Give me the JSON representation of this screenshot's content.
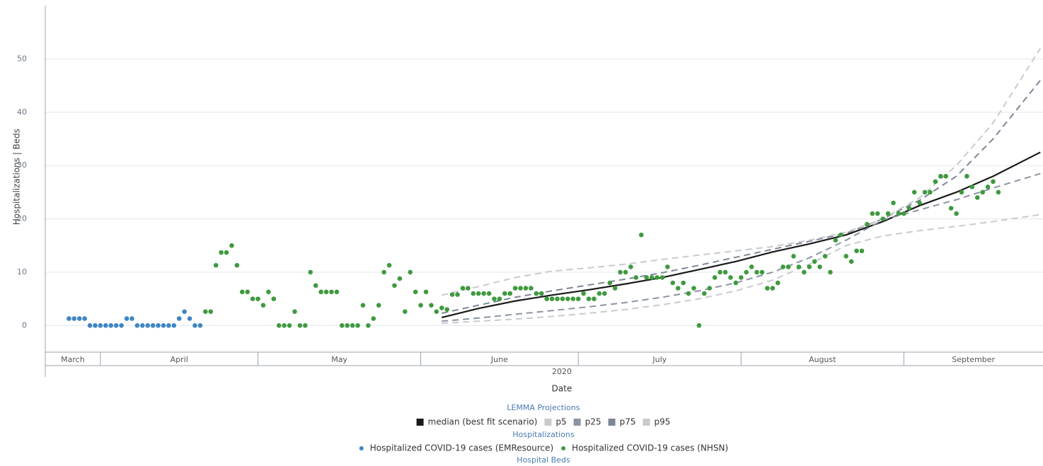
{
  "chart_data": {
    "type": "line",
    "ylabel": "Hospitalizations | Beds",
    "xlabel": "Date",
    "x_group_label": "2020",
    "xlim": [
      81.5,
      271.5
    ],
    "xticks": [
      {
        "value": 61,
        "label": "March"
      },
      {
        "value": 92,
        "label": "April"
      },
      {
        "value": 122,
        "label": "May"
      },
      {
        "value": 153,
        "label": "June"
      },
      {
        "value": 183,
        "label": "July"
      },
      {
        "value": 214,
        "label": "August"
      },
      {
        "value": 245,
        "label": "September"
      }
    ],
    "ylim": [
      -5,
      60
    ],
    "yticks": [
      0,
      10,
      20,
      30,
      40,
      50
    ],
    "grid": true,
    "groups": [
      {
        "title": "LEMMA Projections",
        "series": [
          {
            "name": "median (best fit scenario)",
            "type": "line",
            "dash": false,
            "color": "#1a1a1a",
            "x": [
              157,
              164,
              171,
              178,
              185,
              192,
              199,
              206,
              213,
              220,
              227,
              234,
              241,
              248,
              255,
              262,
              271
            ],
            "values": [
              1.5,
              3.2,
              4.6,
              5.7,
              6.7,
              7.8,
              9,
              10.5,
              12,
              13.8,
              15.3,
              17,
              19.5,
              22.5,
              25,
              28,
              32.5
            ]
          },
          {
            "name": "p5",
            "type": "line",
            "dash": true,
            "color": "#c8cacd",
            "x": [
              157,
              164,
              171,
              178,
              185,
              192,
              199,
              206,
              213,
              220,
              227,
              234,
              241,
              248,
              255,
              262,
              271
            ],
            "values": [
              0.4,
              0.8,
              1.2,
              1.7,
              2.3,
              3,
              3.9,
              5,
              6.5,
              8.5,
              11.5,
              15,
              16.8,
              17.8,
              18.6,
              19.5,
              20.8
            ]
          },
          {
            "name": "p25",
            "type": "line",
            "dash": true,
            "color": "#8a94a2",
            "x": [
              157,
              164,
              171,
              178,
              185,
              192,
              199,
              206,
              213,
              220,
              227,
              234,
              241,
              248,
              255,
              262,
              271
            ],
            "values": [
              0.8,
              1.4,
              2.1,
              2.8,
              3.5,
              4.3,
              5.3,
              6.5,
              8,
              10,
              12.7,
              16,
              19.8,
              21.7,
              23.6,
              25.8,
              28.5
            ]
          },
          {
            "name": "p75",
            "type": "line",
            "dash": true,
            "color": "#7c8796",
            "x": [
              157,
              164,
              171,
              178,
              185,
              192,
              199,
              206,
              213,
              220,
              227,
              234,
              241,
              248,
              255,
              262,
              271
            ],
            "values": [
              2.3,
              3.8,
              5.3,
              6.5,
              7.6,
              8.7,
              9.9,
              11.3,
              12.8,
              14.3,
              15.8,
              17.3,
              20,
              23.5,
              28,
              35,
              46
            ]
          },
          {
            "name": "p95",
            "type": "line",
            "dash": true,
            "color": "#c8cacd",
            "x": [
              157,
              164,
              171,
              178,
              185,
              192,
              199,
              206,
              213,
              220,
              227,
              234,
              241,
              248,
              255,
              262,
              271
            ],
            "values": [
              5.7,
              7.3,
              9,
              10.2,
              10.8,
              11.5,
              12.4,
              13.2,
              14,
              14.8,
              16,
              17.5,
              20,
              24,
              30,
              38,
              52
            ]
          }
        ]
      },
      {
        "title": "Hospitalizations",
        "series": [
          {
            "name": "Hospitalized COVID-19 cases (EMResource)",
            "type": "scatter",
            "color": "#3f86c4",
            "x": [
              86,
              87,
              88,
              89,
              90,
              91,
              92,
              93,
              94,
              95,
              96,
              97,
              98,
              99,
              100,
              101,
              102,
              103,
              104,
              105,
              106,
              107,
              108,
              109,
              110,
              111
            ],
            "values": [
              1.3,
              1.3,
              1.3,
              1.3,
              0,
              0,
              0,
              0,
              0,
              0,
              0,
              1.3,
              1.3,
              0,
              0,
              0,
              0,
              0,
              0,
              0,
              0,
              1.3,
              2.6,
              1.3,
              0,
              0
            ]
          },
          {
            "name": "Hospitalized COVID-19 cases (NHSN)",
            "type": "scatter",
            "color": "#3f9a3f",
            "x": [
              112,
              113,
              114,
              115,
              116,
              117,
              118,
              119,
              120,
              121,
              122,
              123,
              124,
              125,
              126,
              127,
              128,
              129,
              130,
              131,
              132,
              133,
              134,
              135,
              136,
              137,
              138,
              139,
              140,
              141,
              142,
              143,
              144,
              145,
              146,
              147,
              148,
              149,
              150,
              151,
              152,
              153,
              154,
              155,
              156,
              157,
              158,
              159,
              160,
              161,
              162,
              163,
              164,
              165,
              166,
              167,
              168,
              169,
              170,
              171,
              172,
              173,
              174,
              175,
              176,
              177,
              178,
              179,
              180,
              181,
              182,
              183,
              184,
              185,
              186,
              187,
              188,
              189,
              190,
              191,
              192,
              193,
              194,
              195,
              196,
              197,
              198,
              199,
              200,
              201,
              202,
              203,
              204,
              205,
              206,
              207,
              208,
              209,
              210,
              211,
              212,
              213,
              214,
              215,
              216,
              217,
              218,
              219,
              220,
              221,
              222,
              223,
              224,
              225,
              226,
              227,
              228,
              229,
              230,
              231,
              232,
              233,
              234,
              235,
              236,
              237,
              238,
              239,
              240,
              241,
              242,
              243,
              244,
              245,
              246,
              247,
              248,
              249,
              250,
              251,
              252,
              253,
              254,
              255,
              256,
              257,
              258,
              259,
              260,
              261,
              262,
              263
            ],
            "values": [
              2.6,
              2.6,
              11.3,
              13.7,
              13.7,
              15,
              11.3,
              6.3,
              6.3,
              5,
              5,
              3.8,
              6.3,
              5,
              0,
              0,
              0,
              2.6,
              0,
              0,
              10,
              7.5,
              6.3,
              6.3,
              6.3,
              6.3,
              0,
              0,
              0,
              0,
              3.8,
              0,
              1.3,
              3.8,
              10,
              11.3,
              7.5,
              8.8,
              2.6,
              10,
              6.3,
              3.8,
              6.3,
              3.8,
              2.6,
              3.3,
              3,
              5.8,
              5.8,
              7,
              7,
              6,
              6,
              6,
              6,
              5,
              5,
              6,
              6,
              7,
              7,
              7,
              7,
              6,
              6,
              5,
              5,
              5,
              5,
              5,
              5,
              5,
              6,
              5,
              5,
              6,
              6,
              8,
              7,
              10,
              10,
              11,
              9,
              17,
              9,
              9,
              9,
              9,
              11,
              8,
              7,
              8,
              6,
              7,
              0,
              6,
              7,
              9,
              10,
              10,
              9,
              8,
              9,
              10,
              11,
              10,
              10,
              7,
              7,
              8,
              11,
              11,
              13,
              11,
              10,
              11,
              12,
              11,
              13,
              10,
              16,
              17,
              13,
              12,
              14,
              14,
              19,
              21,
              21,
              20,
              21,
              23,
              21,
              21,
              22,
              25,
              23,
              25,
              25,
              27,
              28,
              28,
              22,
              21,
              25,
              28,
              26,
              24,
              25,
              26,
              27,
              25
            ]
          }
        ]
      },
      {
        "title": "Hospital Beds",
        "series": []
      }
    ]
  }
}
